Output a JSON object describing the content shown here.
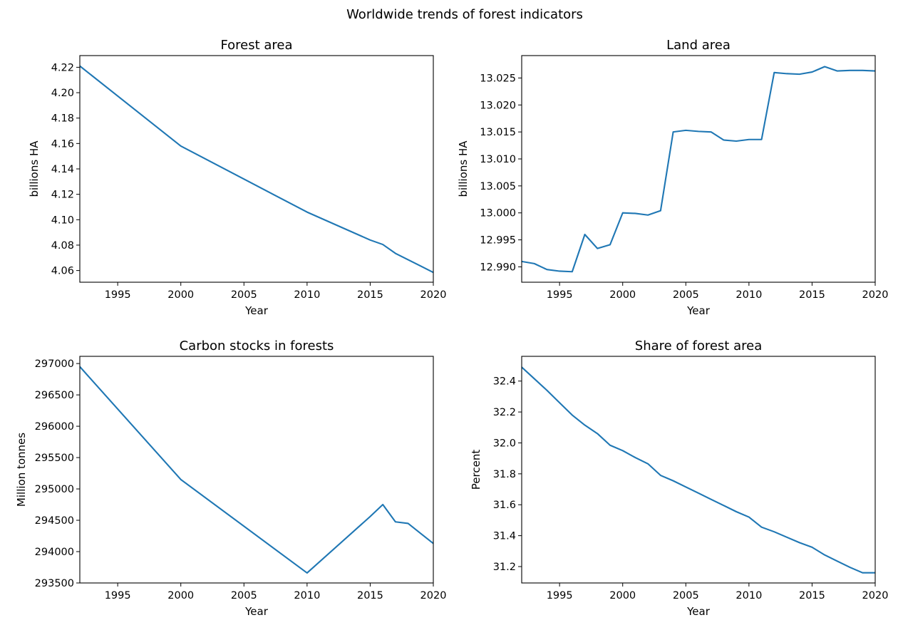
{
  "suptitle": "Worldwide trends of forest indicators",
  "series_color": "#1f77b4",
  "chart_data": [
    {
      "type": "line",
      "title": "Forest area",
      "xlabel": "Year",
      "ylabel": "billions HA",
      "xlim": [
        1992,
        2020
      ],
      "ylim": [
        4.0508,
        4.2292
      ],
      "xticks": [
        1995,
        2000,
        2005,
        2010,
        2015,
        2020
      ],
      "yticks": [
        4.06,
        4.08,
        4.1,
        4.12,
        4.14,
        4.16,
        4.18,
        4.2,
        4.22
      ],
      "ytick_decimals": 2,
      "series": [
        {
          "x": [
            1992,
            2000,
            2010,
            2015,
            2016,
            2017,
            2018,
            2019,
            2020
          ],
          "y": [
            4.221,
            4.158,
            4.106,
            4.084,
            4.0805,
            4.0735,
            4.0685,
            4.0635,
            4.0585
          ]
        }
      ]
    },
    {
      "type": "line",
      "title": "Land area",
      "xlabel": "Year",
      "ylabel": "billions HA",
      "xlim": [
        1992,
        2020
      ],
      "ylim": [
        12.98715,
        13.02915
      ],
      "xticks": [
        1995,
        2000,
        2005,
        2010,
        2015,
        2020
      ],
      "yticks": [
        12.99,
        12.995,
        13.0,
        13.005,
        13.01,
        13.015,
        13.02,
        13.025
      ],
      "ytick_decimals": 3,
      "series": [
        {
          "x": [
            1992,
            1993,
            1994,
            1995,
            1996,
            1997,
            1998,
            1999,
            2000,
            2001,
            2002,
            2003,
            2004,
            2005,
            2006,
            2007,
            2008,
            2009,
            2010,
            2011,
            2012,
            2013,
            2014,
            2015,
            2016,
            2017,
            2018,
            2019,
            2020
          ],
          "y": [
            12.991,
            12.9906,
            12.9895,
            12.9892,
            12.9891,
            12.996,
            12.9934,
            12.9941,
            13.0,
            12.9999,
            12.9996,
            13.0004,
            13.015,
            13.0153,
            13.0151,
            13.015,
            13.0135,
            13.0133,
            13.0136,
            13.0136,
            13.026,
            13.0258,
            13.0257,
            13.0261,
            13.0271,
            13.0263,
            13.0264,
            13.0264,
            13.0263
          ]
        }
      ]
    },
    {
      "type": "line",
      "title": "Carbon stocks in forests",
      "xlabel": "Year",
      "ylabel": "Million tonnes",
      "xlim": [
        1992,
        2020
      ],
      "ylim": [
        293500,
        297115
      ],
      "xticks": [
        1995,
        2000,
        2005,
        2010,
        2015,
        2020
      ],
      "yticks": [
        293500,
        294000,
        294500,
        295000,
        295500,
        296000,
        296500,
        297000
      ],
      "ytick_decimals": 0,
      "series": [
        {
          "x": [
            1992,
            2000,
            2010,
            2015,
            2016,
            2017,
            2018,
            2019,
            2020
          ],
          "y": [
            296950,
            295150,
            293660,
            294560,
            294750,
            294475,
            294450,
            294290,
            294130
          ]
        }
      ]
    },
    {
      "type": "line",
      "title": "Share of forest area",
      "xlabel": "Year",
      "ylabel": "Percent",
      "xlim": [
        1992,
        2020
      ],
      "ylim": [
        31.094,
        32.56
      ],
      "xticks": [
        1995,
        2000,
        2005,
        2010,
        2015,
        2020
      ],
      "yticks": [
        31.2,
        31.4,
        31.6,
        31.8,
        32.0,
        32.2,
        32.4
      ],
      "ytick_decimals": 1,
      "series": [
        {
          "x": [
            1992,
            1993,
            1994,
            1995,
            1996,
            1997,
            1998,
            1999,
            2000,
            2001,
            2002,
            2003,
            2004,
            2005,
            2006,
            2007,
            2008,
            2009,
            2010,
            2011,
            2012,
            2013,
            2014,
            2015,
            2016,
            2017,
            2018,
            2019,
            2020
          ],
          "y": [
            32.49,
            32.415,
            32.34,
            32.26,
            32.18,
            32.115,
            32.06,
            31.985,
            31.95,
            31.905,
            31.865,
            31.79,
            31.755,
            31.715,
            31.675,
            31.635,
            31.595,
            31.555,
            31.52,
            31.455,
            31.425,
            31.39,
            31.355,
            31.325,
            31.275,
            31.235,
            31.195,
            31.16,
            31.16
          ]
        }
      ]
    }
  ]
}
